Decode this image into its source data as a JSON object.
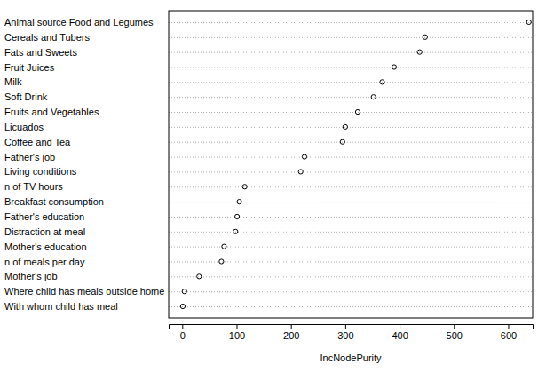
{
  "chart_data": {
    "type": "dot",
    "orientation": "horizontal",
    "grid": true,
    "marker": "circle",
    "color": "#000000",
    "x_label": "IncNodePurity",
    "categories": [
      "Animal source Food and Legumes",
      "Cereals and Tubers",
      "Fats and Sweets",
      "Fruit Juices",
      "Milk",
      "Soft Drink",
      "Fruits and Vegetables",
      "Licuados",
      "Coffee and Tea",
      "Father's job",
      "Living conditions",
      "n of TV hours",
      "Breakfast consumption",
      "Father's education",
      "Distraction at meal",
      "Mother's education",
      "n of meals per day",
      "Mother's job",
      "Where child has meals outside home",
      "With whom child has meal"
    ],
    "values": [
      638,
      447,
      437,
      390,
      368,
      352,
      323,
      300,
      295,
      225,
      218,
      115,
      105,
      101,
      98,
      77,
      72,
      31,
      4,
      1
    ],
    "xlim": [
      -25,
      645
    ],
    "xticks": [
      0,
      100,
      200,
      300,
      400,
      500,
      600
    ]
  }
}
